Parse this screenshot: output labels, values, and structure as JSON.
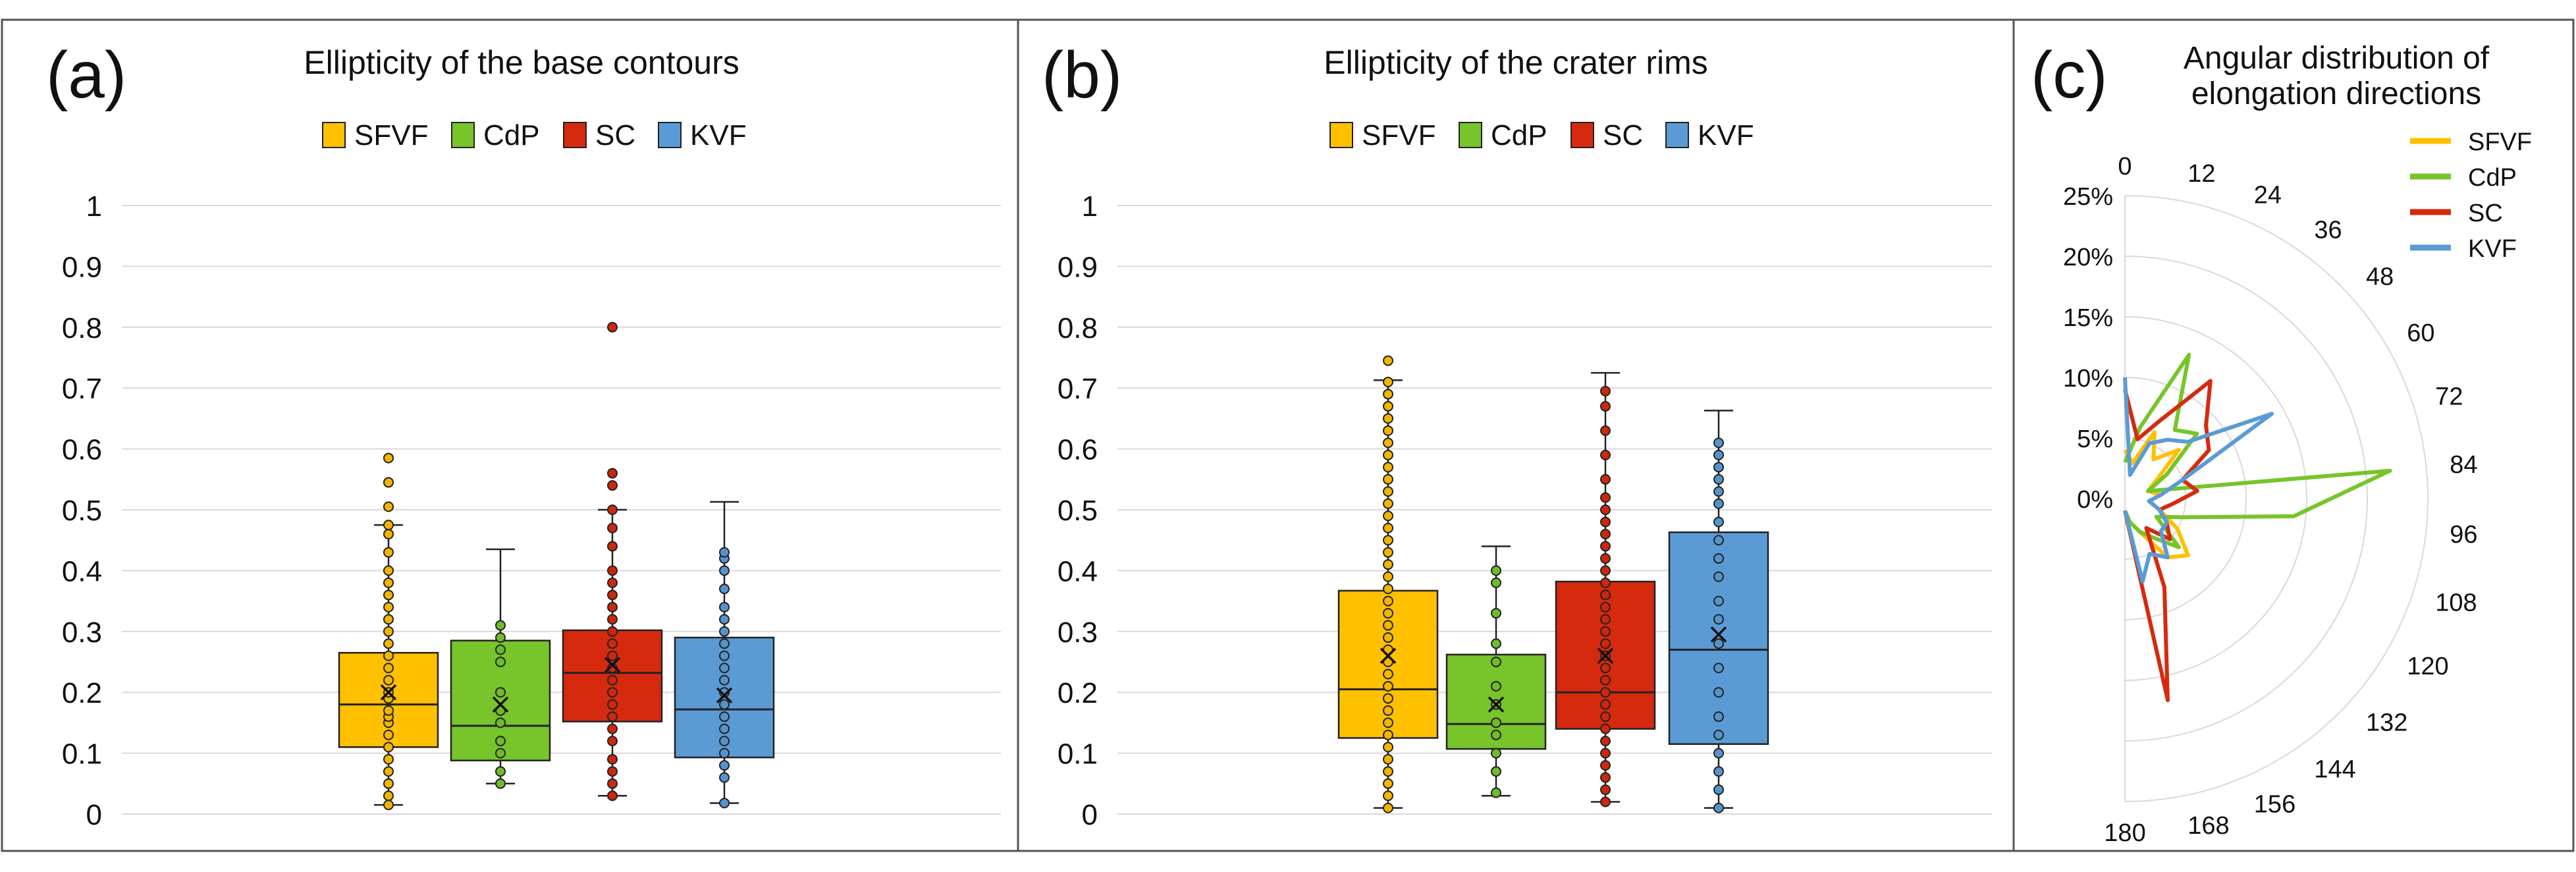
{
  "colors": {
    "SFVF": "#FFC000",
    "CdP": "#77C42B",
    "SC": "#D62A0F",
    "KVF": "#5B9BD5",
    "grid": "#D9D9D9",
    "frame": "#555555"
  },
  "chart_data": [
    {
      "type": "box",
      "panel_label": "(a)",
      "title": "Ellipticity of the base contours",
      "ylim": [
        0,
        1
      ],
      "yticks": [
        "0",
        "0.1",
        "0.2",
        "0.3",
        "0.4",
        "0.5",
        "0.6",
        "0.7",
        "0.8",
        "0.9",
        "1"
      ],
      "series": [
        {
          "name": "SFVF",
          "min": 0.015,
          "q1": 0.11,
          "median": 0.18,
          "q3": 0.265,
          "max": 0.475,
          "mean": 0.2,
          "points": [
            0.015,
            0.03,
            0.05,
            0.07,
            0.09,
            0.11,
            0.13,
            0.15,
            0.16,
            0.17,
            0.19,
            0.2,
            0.22,
            0.24,
            0.26,
            0.28,
            0.3,
            0.32,
            0.34,
            0.36,
            0.38,
            0.4,
            0.43,
            0.46,
            0.475,
            0.505,
            0.545,
            0.585
          ]
        },
        {
          "name": "CdP",
          "min": 0.05,
          "q1": 0.088,
          "median": 0.145,
          "q3": 0.285,
          "max": 0.435,
          "mean": 0.18,
          "points": [
            0.05,
            0.07,
            0.1,
            0.12,
            0.15,
            0.17,
            0.2,
            0.25,
            0.27,
            0.29,
            0.31
          ]
        },
        {
          "name": "SC",
          "min": 0.03,
          "q1": 0.152,
          "median": 0.232,
          "q3": 0.302,
          "max": 0.5,
          "mean": 0.245,
          "points": [
            0.03,
            0.05,
            0.07,
            0.09,
            0.12,
            0.14,
            0.16,
            0.18,
            0.2,
            0.22,
            0.24,
            0.26,
            0.28,
            0.3,
            0.32,
            0.34,
            0.36,
            0.38,
            0.4,
            0.44,
            0.47,
            0.5,
            0.54,
            0.56,
            0.8
          ]
        },
        {
          "name": "KVF",
          "min": 0.018,
          "q1": 0.093,
          "median": 0.172,
          "q3": 0.29,
          "max": 0.513,
          "mean": 0.195,
          "points": [
            0.018,
            0.06,
            0.08,
            0.1,
            0.12,
            0.14,
            0.16,
            0.18,
            0.2,
            0.22,
            0.24,
            0.26,
            0.28,
            0.3,
            0.32,
            0.34,
            0.37,
            0.4,
            0.42,
            0.43
          ]
        }
      ]
    },
    {
      "type": "box",
      "panel_label": "(b)",
      "title": "Ellipticity of the crater rims",
      "ylim": [
        0,
        1
      ],
      "yticks": [
        "0",
        "0.1",
        "0.2",
        "0.3",
        "0.4",
        "0.5",
        "0.6",
        "0.7",
        "0.8",
        "0.9",
        "1"
      ],
      "series": [
        {
          "name": "SFVF",
          "min": 0.01,
          "q1": 0.125,
          "median": 0.205,
          "q3": 0.367,
          "max": 0.713,
          "mean": 0.26,
          "points": [
            0.01,
            0.03,
            0.05,
            0.07,
            0.09,
            0.11,
            0.13,
            0.15,
            0.17,
            0.19,
            0.21,
            0.23,
            0.25,
            0.27,
            0.29,
            0.31,
            0.33,
            0.35,
            0.37,
            0.39,
            0.41,
            0.43,
            0.45,
            0.47,
            0.49,
            0.51,
            0.53,
            0.55,
            0.57,
            0.59,
            0.61,
            0.63,
            0.65,
            0.67,
            0.69,
            0.71,
            0.745
          ]
        },
        {
          "name": "CdP",
          "min": 0.03,
          "q1": 0.107,
          "median": 0.148,
          "q3": 0.262,
          "max": 0.44,
          "mean": 0.18,
          "points": [
            0.035,
            0.07,
            0.1,
            0.13,
            0.15,
            0.18,
            0.21,
            0.25,
            0.28,
            0.33,
            0.38,
            0.4
          ]
        },
        {
          "name": "SC",
          "min": 0.02,
          "q1": 0.14,
          "median": 0.2,
          "q3": 0.382,
          "max": 0.725,
          "mean": 0.26,
          "points": [
            0.02,
            0.04,
            0.06,
            0.08,
            0.1,
            0.12,
            0.14,
            0.16,
            0.18,
            0.2,
            0.22,
            0.24,
            0.26,
            0.28,
            0.3,
            0.32,
            0.34,
            0.36,
            0.38,
            0.4,
            0.42,
            0.44,
            0.46,
            0.48,
            0.5,
            0.52,
            0.55,
            0.59,
            0.63,
            0.67,
            0.695
          ]
        },
        {
          "name": "KVF",
          "min": 0.01,
          "q1": 0.115,
          "median": 0.27,
          "q3": 0.463,
          "max": 0.663,
          "mean": 0.295,
          "points": [
            0.01,
            0.04,
            0.07,
            0.1,
            0.13,
            0.16,
            0.2,
            0.24,
            0.28,
            0.32,
            0.35,
            0.39,
            0.42,
            0.45,
            0.48,
            0.51,
            0.53,
            0.55,
            0.57,
            0.59,
            0.61
          ]
        }
      ]
    },
    {
      "type": "radar",
      "panel_label": "(c)",
      "title_lines": [
        "Angular distribution of",
        "elongation directions"
      ],
      "rlim": [
        0,
        25
      ],
      "rticks": [
        "0%",
        "5%",
        "10%",
        "15%",
        "20%",
        "25%"
      ],
      "angles": [
        0,
        12,
        24,
        36,
        48,
        60,
        72,
        84,
        96,
        108,
        120,
        132,
        144,
        156,
        168,
        180
      ],
      "angle_labels": [
        "0",
        "12",
        "24",
        "36",
        "48",
        "60",
        "72",
        "84",
        "96",
        "108",
        "120",
        "132",
        "144",
        "156",
        "168",
        "180"
      ],
      "series": [
        {
          "name": "SFVF",
          "values": [
            4,
            3,
            6,
            4,
            6,
            3,
            2,
            3,
            2,
            3,
            5,
            7,
            6,
            3,
            2,
            2
          ]
        },
        {
          "name": "CdP",
          "values": [
            3,
            6,
            13,
            7,
            8,
            4,
            2,
            22,
            14,
            5,
            3,
            6,
            4,
            3,
            2,
            1
          ]
        },
        {
          "name": "SC",
          "values": [
            9,
            5,
            7,
            12,
            9,
            8,
            5,
            6,
            4,
            3,
            4,
            5,
            3,
            8,
            17,
            1
          ]
        },
        {
          "name": "KVF",
          "values": [
            10,
            2,
            5,
            6,
            7,
            14,
            5,
            3,
            2,
            3,
            4,
            4,
            6,
            5,
            7,
            1
          ]
        }
      ]
    }
  ]
}
